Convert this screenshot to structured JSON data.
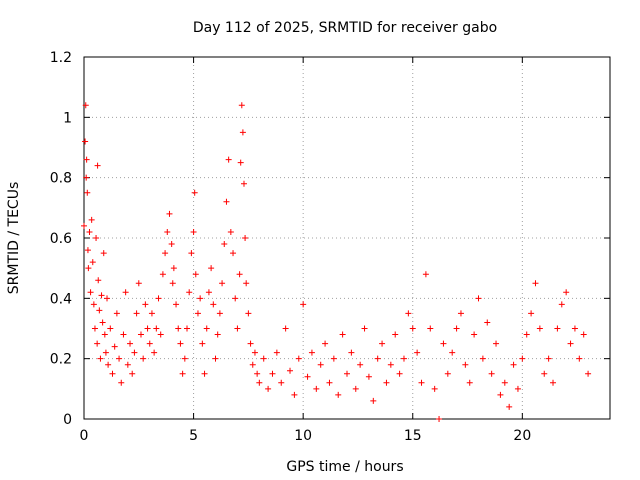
{
  "chart_data": {
    "type": "scatter",
    "title": "Day 112 of 2025, SRMTID for receiver gabo",
    "xlabel": "GPS time / hours",
    "ylabel": "SRMTID / TECUs",
    "xlim": [
      0,
      24
    ],
    "ylim": [
      0,
      1.2
    ],
    "xticks": [
      0,
      5,
      10,
      15,
      20
    ],
    "xtick_labels": [
      "0",
      "5",
      "10",
      "15",
      "20"
    ],
    "yticks": [
      0,
      0.2,
      0.4,
      0.6,
      0.8,
      1,
      1.2
    ],
    "ytick_labels": [
      "0",
      "0.2",
      "0.4",
      "0.6",
      "0.8",
      "1",
      "1.2"
    ],
    "grid": true,
    "marker": "+",
    "series": [
      {
        "name": "SRMTID",
        "color": "#ff0000",
        "points": [
          [
            0.0,
            0.64
          ],
          [
            0.05,
            0.92
          ],
          [
            0.08,
            1.04
          ],
          [
            0.1,
            0.8
          ],
          [
            0.12,
            0.86
          ],
          [
            0.15,
            0.75
          ],
          [
            0.18,
            0.56
          ],
          [
            0.2,
            0.5
          ],
          [
            0.25,
            0.62
          ],
          [
            0.3,
            0.42
          ],
          [
            0.35,
            0.66
          ],
          [
            0.4,
            0.52
          ],
          [
            0.45,
            0.38
          ],
          [
            0.5,
            0.3
          ],
          [
            0.55,
            0.6
          ],
          [
            0.6,
            0.25
          ],
          [
            0.62,
            0.84
          ],
          [
            0.65,
            0.46
          ],
          [
            0.7,
            0.36
          ],
          [
            0.75,
            0.2
          ],
          [
            0.8,
            0.41
          ],
          [
            0.85,
            0.32
          ],
          [
            0.9,
            0.55
          ],
          [
            0.95,
            0.28
          ],
          [
            1.0,
            0.22
          ],
          [
            1.05,
            0.4
          ],
          [
            1.1,
            0.18
          ],
          [
            1.2,
            0.3
          ],
          [
            1.3,
            0.15
          ],
          [
            1.4,
            0.24
          ],
          [
            1.5,
            0.35
          ],
          [
            1.6,
            0.2
          ],
          [
            1.7,
            0.12
          ],
          [
            1.8,
            0.28
          ],
          [
            1.9,
            0.42
          ],
          [
            2.0,
            0.18
          ],
          [
            2.1,
            0.25
          ],
          [
            2.2,
            0.15
          ],
          [
            2.3,
            0.22
          ],
          [
            2.4,
            0.35
          ],
          [
            2.5,
            0.45
          ],
          [
            2.6,
            0.28
          ],
          [
            2.7,
            0.2
          ],
          [
            2.8,
            0.38
          ],
          [
            2.9,
            0.3
          ],
          [
            3.0,
            0.25
          ],
          [
            3.1,
            0.35
          ],
          [
            3.2,
            0.22
          ],
          [
            3.3,
            0.3
          ],
          [
            3.4,
            0.4
          ],
          [
            3.5,
            0.28
          ],
          [
            3.6,
            0.48
          ],
          [
            3.7,
            0.55
          ],
          [
            3.8,
            0.62
          ],
          [
            3.9,
            0.68
          ],
          [
            4.0,
            0.58
          ],
          [
            4.05,
            0.45
          ],
          [
            4.1,
            0.5
          ],
          [
            4.2,
            0.38
          ],
          [
            4.3,
            0.3
          ],
          [
            4.4,
            0.25
          ],
          [
            4.5,
            0.15
          ],
          [
            4.6,
            0.2
          ],
          [
            4.7,
            0.3
          ],
          [
            4.8,
            0.42
          ],
          [
            4.9,
            0.55
          ],
          [
            5.0,
            0.62
          ],
          [
            5.05,
            0.75
          ],
          [
            5.1,
            0.48
          ],
          [
            5.2,
            0.35
          ],
          [
            5.3,
            0.4
          ],
          [
            5.4,
            0.25
          ],
          [
            5.5,
            0.15
          ],
          [
            5.6,
            0.3
          ],
          [
            5.7,
            0.42
          ],
          [
            5.8,
            0.5
          ],
          [
            5.9,
            0.38
          ],
          [
            6.0,
            0.2
          ],
          [
            6.1,
            0.28
          ],
          [
            6.2,
            0.35
          ],
          [
            6.3,
            0.45
          ],
          [
            6.4,
            0.58
          ],
          [
            6.5,
            0.72
          ],
          [
            6.6,
            0.86
          ],
          [
            6.7,
            0.62
          ],
          [
            6.8,
            0.55
          ],
          [
            6.9,
            0.4
          ],
          [
            7.0,
            0.3
          ],
          [
            7.1,
            0.48
          ],
          [
            7.15,
            0.85
          ],
          [
            7.2,
            1.04
          ],
          [
            7.25,
            0.95
          ],
          [
            7.3,
            0.78
          ],
          [
            7.35,
            0.6
          ],
          [
            7.4,
            0.45
          ],
          [
            7.5,
            0.35
          ],
          [
            7.6,
            0.25
          ],
          [
            7.7,
            0.18
          ],
          [
            7.8,
            0.22
          ],
          [
            7.9,
            0.15
          ],
          [
            8.0,
            0.12
          ],
          [
            8.2,
            0.2
          ],
          [
            8.4,
            0.1
          ],
          [
            8.6,
            0.15
          ],
          [
            8.8,
            0.22
          ],
          [
            9.0,
            0.12
          ],
          [
            9.2,
            0.3
          ],
          [
            9.4,
            0.16
          ],
          [
            9.6,
            0.08
          ],
          [
            9.8,
            0.2
          ],
          [
            10.0,
            0.38
          ],
          [
            10.2,
            0.14
          ],
          [
            10.4,
            0.22
          ],
          [
            10.6,
            0.1
          ],
          [
            10.8,
            0.18
          ],
          [
            11.0,
            0.25
          ],
          [
            11.2,
            0.12
          ],
          [
            11.4,
            0.2
          ],
          [
            11.6,
            0.08
          ],
          [
            11.8,
            0.28
          ],
          [
            12.0,
            0.15
          ],
          [
            12.2,
            0.22
          ],
          [
            12.4,
            0.1
          ],
          [
            12.6,
            0.18
          ],
          [
            12.8,
            0.3
          ],
          [
            13.0,
            0.14
          ],
          [
            13.2,
            0.06
          ],
          [
            13.4,
            0.2
          ],
          [
            13.6,
            0.25
          ],
          [
            13.8,
            0.12
          ],
          [
            14.0,
            0.18
          ],
          [
            14.2,
            0.28
          ],
          [
            14.4,
            0.15
          ],
          [
            14.6,
            0.2
          ],
          [
            14.8,
            0.35
          ],
          [
            15.0,
            0.3
          ],
          [
            15.2,
            0.22
          ],
          [
            15.4,
            0.12
          ],
          [
            15.6,
            0.48
          ],
          [
            15.8,
            0.3
          ],
          [
            16.0,
            0.1
          ],
          [
            16.2,
            0.0
          ],
          [
            16.4,
            0.25
          ],
          [
            16.6,
            0.15
          ],
          [
            16.8,
            0.22
          ],
          [
            17.0,
            0.3
          ],
          [
            17.2,
            0.35
          ],
          [
            17.4,
            0.18
          ],
          [
            17.6,
            0.12
          ],
          [
            17.8,
            0.28
          ],
          [
            18.0,
            0.4
          ],
          [
            18.2,
            0.2
          ],
          [
            18.4,
            0.32
          ],
          [
            18.6,
            0.15
          ],
          [
            18.8,
            0.25
          ],
          [
            19.0,
            0.08
          ],
          [
            19.2,
            0.12
          ],
          [
            19.4,
            0.04
          ],
          [
            19.6,
            0.18
          ],
          [
            19.8,
            0.1
          ],
          [
            20.0,
            0.2
          ],
          [
            20.2,
            0.28
          ],
          [
            20.4,
            0.35
          ],
          [
            20.6,
            0.45
          ],
          [
            20.8,
            0.3
          ],
          [
            21.0,
            0.15
          ],
          [
            21.2,
            0.2
          ],
          [
            21.4,
            0.12
          ],
          [
            21.6,
            0.3
          ],
          [
            21.8,
            0.38
          ],
          [
            22.0,
            0.42
          ],
          [
            22.2,
            0.25
          ],
          [
            22.4,
            0.3
          ],
          [
            22.6,
            0.2
          ],
          [
            22.8,
            0.28
          ],
          [
            23.0,
            0.15
          ]
        ]
      }
    ]
  }
}
